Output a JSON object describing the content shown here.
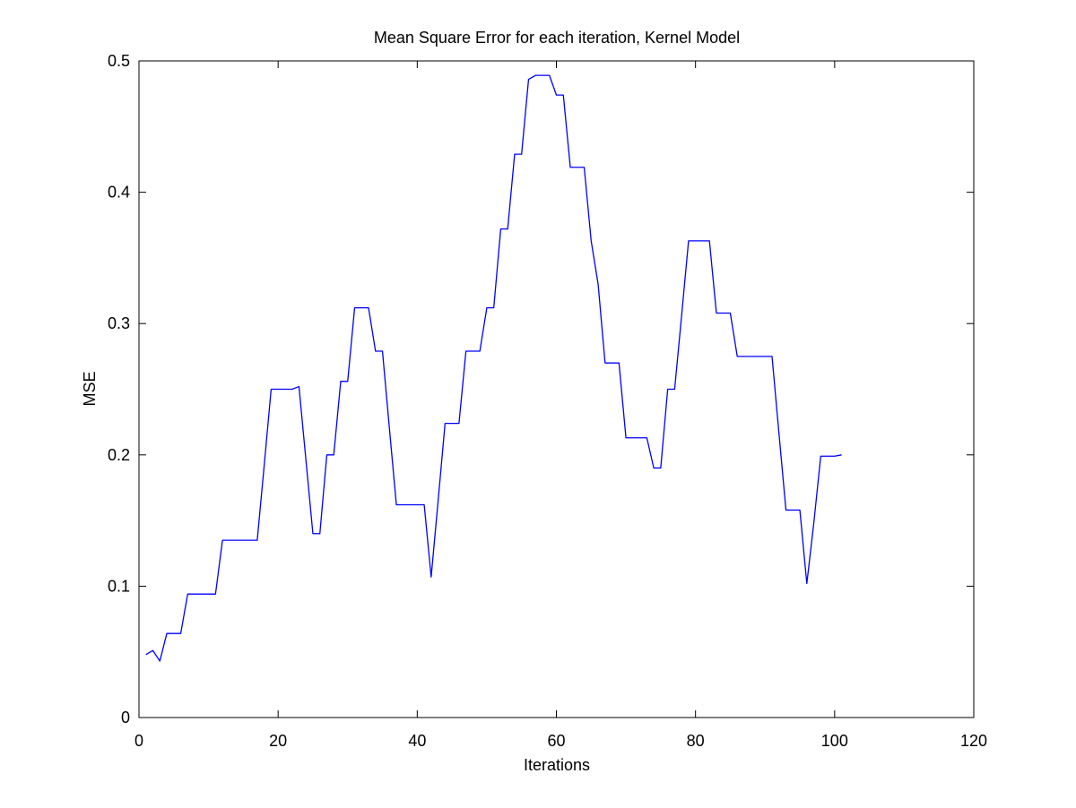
{
  "chart_data": {
    "type": "line",
    "title": "Mean Square Error for each iteration, Kernel Model",
    "xlabel": "Iterations",
    "ylabel": "MSE",
    "xlim": [
      0,
      120
    ],
    "ylim": [
      0,
      0.5
    ],
    "xticks": [
      0,
      20,
      40,
      60,
      80,
      100,
      120
    ],
    "yticks": [
      0,
      0.1,
      0.2,
      0.3,
      0.4,
      0.5
    ],
    "xtick_labels": [
      "0",
      "20",
      "40",
      "60",
      "80",
      "100",
      "120"
    ],
    "ytick_labels": [
      "0",
      "0.1",
      "0.2",
      "0.3",
      "0.4",
      "0.5"
    ],
    "grid": false,
    "line_color": "#0000ff",
    "series": [
      {
        "x": [
          1,
          2,
          3,
          4,
          5,
          6,
          7,
          8,
          9,
          10,
          11,
          12,
          13,
          14,
          15,
          16,
          17,
          18,
          19,
          20,
          21,
          22,
          23,
          24,
          25,
          26,
          27,
          28,
          29,
          30,
          31,
          32,
          33,
          34,
          35,
          36,
          37,
          38,
          39,
          40,
          41,
          42,
          43,
          44,
          45,
          46,
          47,
          48,
          49,
          50,
          51,
          52,
          53,
          54,
          55,
          56,
          57,
          58,
          59,
          60,
          61,
          62,
          63,
          64,
          65,
          66,
          67,
          68,
          69,
          70,
          71,
          72,
          73,
          74,
          75,
          76,
          77,
          78,
          79,
          80,
          81,
          82,
          83,
          84,
          85,
          86,
          87,
          88,
          89,
          90,
          91,
          92,
          93,
          94,
          95,
          96,
          97,
          98,
          99,
          100,
          101
        ],
        "y": [
          0.048,
          0.051,
          0.043,
          0.064,
          0.064,
          0.064,
          0.094,
          0.094,
          0.094,
          0.094,
          0.094,
          0.135,
          0.135,
          0.135,
          0.135,
          0.135,
          0.135,
          0.192,
          0.25,
          0.25,
          0.25,
          0.25,
          0.252,
          0.196,
          0.14,
          0.14,
          0.2,
          0.2,
          0.256,
          0.256,
          0.312,
          0.312,
          0.312,
          0.279,
          0.279,
          0.22,
          0.162,
          0.162,
          0.162,
          0.162,
          0.162,
          0.107,
          0.165,
          0.224,
          0.224,
          0.224,
          0.279,
          0.279,
          0.279,
          0.312,
          0.312,
          0.372,
          0.372,
          0.429,
          0.429,
          0.486,
          0.489,
          0.489,
          0.489,
          0.474,
          0.474,
          0.419,
          0.419,
          0.419,
          0.363,
          0.33,
          0.27,
          0.27,
          0.27,
          0.213,
          0.213,
          0.213,
          0.213,
          0.19,
          0.19,
          0.25,
          0.25,
          0.306,
          0.363,
          0.363,
          0.363,
          0.363,
          0.308,
          0.308,
          0.308,
          0.275,
          0.275,
          0.275,
          0.275,
          0.275,
          0.275,
          0.216,
          0.158,
          0.158,
          0.158,
          0.102,
          0.148,
          0.199,
          0.199,
          0.199,
          0.2
        ]
      }
    ]
  }
}
